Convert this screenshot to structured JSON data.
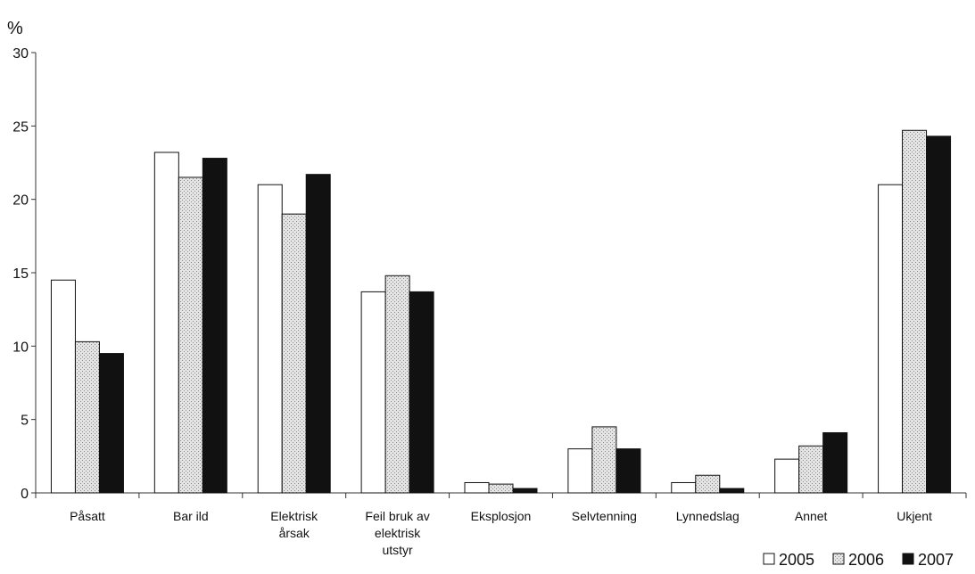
{
  "chart_data": {
    "type": "bar",
    "ylabel": "%",
    "ylim": [
      0,
      30
    ],
    "yticks": [
      0,
      5,
      10,
      15,
      20,
      25,
      30
    ],
    "grid": false,
    "legend_position": "bottom-right",
    "categories": [
      [
        "Påsatt"
      ],
      [
        "Bar ild"
      ],
      [
        "Elektrisk",
        "årsak"
      ],
      [
        "Feil bruk av",
        "elektrisk",
        "utstyr"
      ],
      [
        "Eksplosjon"
      ],
      [
        "Selvtenning"
      ],
      [
        "Lynnedslag"
      ],
      [
        "Annet"
      ],
      [
        "Ukjent"
      ]
    ],
    "series": [
      {
        "name": "2005",
        "fill": "#ffffff",
        "values": [
          14.5,
          23.2,
          21.0,
          13.7,
          0.7,
          3.0,
          0.7,
          2.3,
          21.0
        ]
      },
      {
        "name": "2006",
        "fill": "#d6d6d6",
        "values": [
          10.3,
          21.5,
          19.0,
          14.8,
          0.6,
          4.5,
          1.2,
          3.2,
          24.7
        ]
      },
      {
        "name": "2007",
        "fill": "#111111",
        "values": [
          9.5,
          22.8,
          21.7,
          13.7,
          0.3,
          3.0,
          0.3,
          4.1,
          24.3
        ]
      }
    ]
  }
}
